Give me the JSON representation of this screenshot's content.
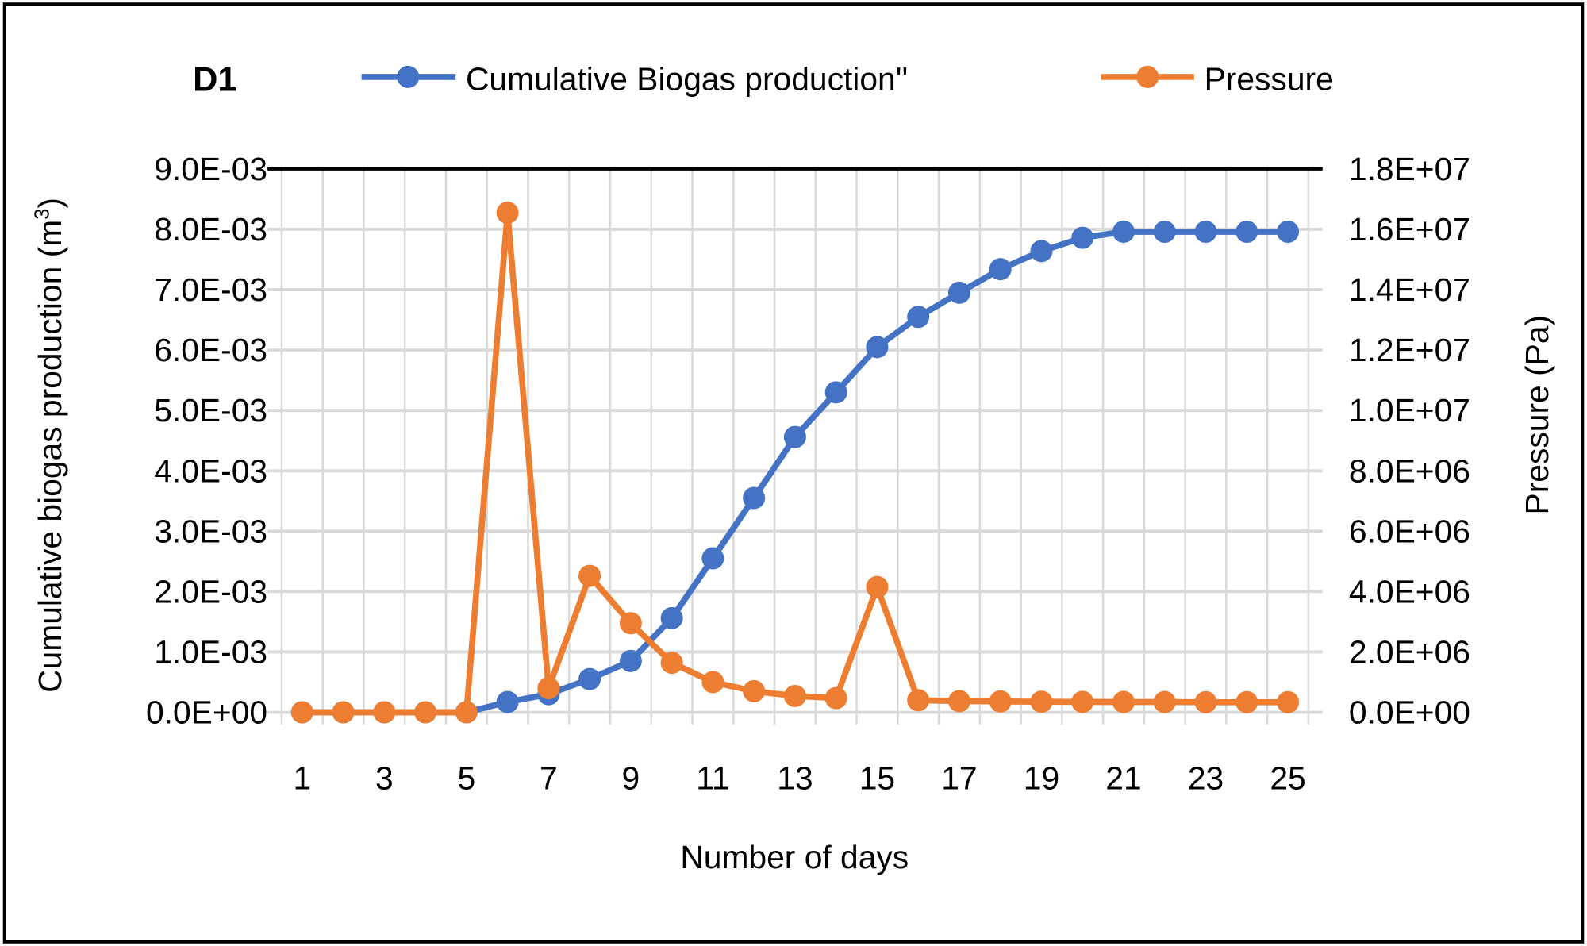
{
  "chart_data": {
    "type": "line",
    "title": "D1",
    "xlabel": "Number of days",
    "ylabel_left": "Cumulative  biogas production (m",
    "ylabel_left_sup": "3",
    "ylabel_left_end": ")",
    "ylabel_right": "Pressure (Pa)",
    "x": [
      1,
      2,
      3,
      4,
      5,
      6,
      7,
      8,
      9,
      10,
      11,
      12,
      13,
      14,
      15,
      16,
      17,
      18,
      19,
      20,
      21,
      22,
      23,
      24,
      25
    ],
    "x_tick_labels": [
      "1",
      "3",
      "5",
      "7",
      "9",
      "11",
      "13",
      "15",
      "17",
      "19",
      "21",
      "23",
      "25"
    ],
    "ylim_left": [
      0,
      0.009
    ],
    "ylim_right": [
      0,
      18000000
    ],
    "y_left_tick_labels": [
      "0.0E+00",
      "1.0E-03",
      "2.0E-03",
      "3.0E-03",
      "4.0E-03",
      "5.0E-03",
      "6.0E-03",
      "7.0E-03",
      "8.0E-03",
      "9.0E-03"
    ],
    "y_right_tick_labels": [
      "0.0E+00",
      "2.0E+06",
      "4.0E+06",
      "6.0E+06",
      "8.0E+06",
      "1.0E+07",
      "1.2E+07",
      "1.4E+07",
      "1.6E+07",
      "1.8E+07"
    ],
    "grid": true,
    "legend_position": "top",
    "series": [
      {
        "name": "Cumulative Biogas production''",
        "axis": "left",
        "color": "#4472C4",
        "values": [
          0,
          0,
          0,
          0,
          0,
          0.00017,
          0.0003,
          0.00055,
          0.00085,
          0.00156,
          0.00255,
          0.00355,
          0.00456,
          0.0053,
          0.00605,
          0.00655,
          0.00695,
          0.00734,
          0.00764,
          0.00786,
          0.00796,
          0.00796,
          0.00796,
          0.00796,
          0.00796
        ]
      },
      {
        "name": "Pressure",
        "axis": "right",
        "color": "#ED7D31",
        "values": [
          0,
          0,
          0,
          0,
          0,
          16550000,
          800000,
          4520000,
          2950000,
          1640000,
          1000000,
          700000,
          540000,
          470000,
          4150000,
          400000,
          370000,
          360000,
          350000,
          345000,
          340000,
          340000,
          335000,
          335000,
          335000
        ]
      }
    ]
  }
}
